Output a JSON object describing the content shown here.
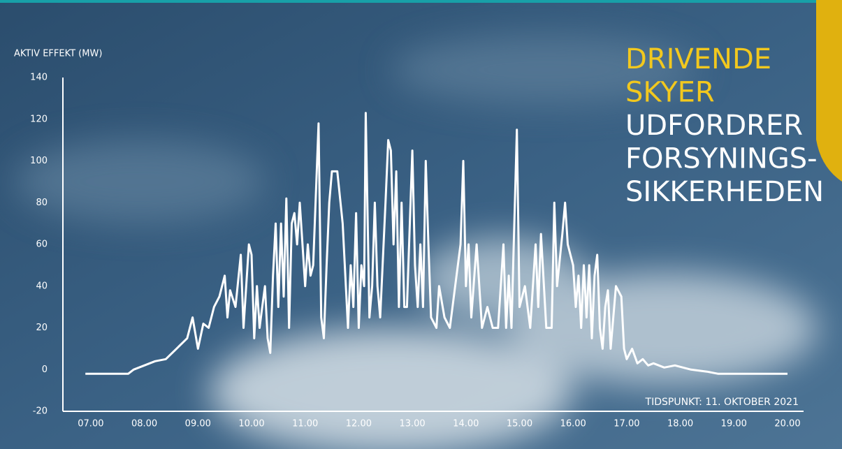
{
  "chart_data": {
    "type": "line",
    "title_lines": [
      {
        "text": "DRIVENDE",
        "color": "#f2c81e"
      },
      {
        "text": "SKYER",
        "color": "#f2c81e"
      },
      {
        "text": "UDFORDRER",
        "color": "#ffffff"
      },
      {
        "text": "FORSYNINGS-",
        "color": "#ffffff"
      },
      {
        "text": "SIKKERHEDEN",
        "color": "#ffffff"
      }
    ],
    "y_label": "AKTIV EFFEKT (MW)",
    "annotation": "TIDSPUNKT: 11. OKTOBER 2021",
    "color": "#ffffff",
    "x": [
      6.9,
      7.7,
      7.8,
      8.0,
      8.2,
      8.4,
      8.6,
      8.8,
      8.9,
      9.0,
      9.1,
      9.2,
      9.3,
      9.4,
      9.5,
      9.55,
      9.6,
      9.7,
      9.8,
      9.85,
      9.95,
      10.0,
      10.05,
      10.1,
      10.15,
      10.2,
      10.25,
      10.3,
      10.35,
      10.4,
      10.45,
      10.5,
      10.55,
      10.6,
      10.65,
      10.7,
      10.75,
      10.8,
      10.85,
      10.9,
      10.95,
      11.0,
      11.05,
      11.1,
      11.15,
      11.25,
      11.3,
      11.35,
      11.4,
      11.45,
      11.5,
      11.6,
      11.7,
      11.8,
      11.85,
      11.9,
      11.95,
      12.0,
      12.05,
      12.1,
      12.13,
      12.2,
      12.25,
      12.3,
      12.35,
      12.4,
      12.5,
      12.55,
      12.6,
      12.65,
      12.7,
      12.75,
      12.8,
      12.85,
      12.9,
      13.0,
      13.05,
      13.1,
      13.15,
      13.2,
      13.25,
      13.3,
      13.35,
      13.45,
      13.5,
      13.6,
      13.7,
      13.8,
      13.9,
      13.95,
      14.0,
      14.05,
      14.1,
      14.2,
      14.3,
      14.4,
      14.5,
      14.6,
      14.7,
      14.75,
      14.8,
      14.85,
      14.95,
      15.0,
      15.1,
      15.2,
      15.3,
      15.35,
      15.4,
      15.5,
      15.6,
      15.65,
      15.7,
      15.8,
      15.85,
      15.9,
      16.0,
      16.05,
      16.1,
      16.15,
      16.2,
      16.25,
      16.3,
      16.35,
      16.4,
      16.45,
      16.5,
      16.55,
      16.6,
      16.65,
      16.7,
      16.8,
      16.9,
      16.95,
      17.0,
      17.1,
      17.2,
      17.3,
      17.4,
      17.5,
      17.7,
      17.9,
      18.2,
      18.5,
      18.7,
      19.0,
      19.5,
      20.0
    ],
    "values": [
      -2,
      -2,
      0,
      2,
      4,
      5,
      10,
      15,
      25,
      10,
      22,
      20,
      30,
      35,
      45,
      25,
      38,
      30,
      55,
      20,
      60,
      55,
      15,
      40,
      20,
      30,
      40,
      15,
      8,
      45,
      70,
      30,
      70,
      35,
      82,
      20,
      70,
      75,
      60,
      80,
      60,
      40,
      60,
      45,
      50,
      118,
      25,
      15,
      50,
      80,
      95,
      95,
      70,
      20,
      50,
      30,
      75,
      20,
      50,
      40,
      123,
      25,
      40,
      80,
      40,
      25,
      80,
      110,
      105,
      60,
      95,
      30,
      80,
      30,
      30,
      105,
      50,
      30,
      60,
      30,
      100,
      60,
      25,
      20,
      40,
      25,
      20,
      40,
      60,
      100,
      40,
      60,
      25,
      60,
      20,
      30,
      20,
      20,
      60,
      20,
      45,
      20,
      115,
      30,
      40,
      20,
      60,
      30,
      65,
      20,
      20,
      80,
      40,
      65,
      80,
      60,
      50,
      30,
      45,
      20,
      50,
      25,
      50,
      15,
      45,
      55,
      20,
      10,
      30,
      38,
      10,
      40,
      35,
      10,
      5,
      10,
      3,
      5,
      2,
      3,
      1,
      2,
      0,
      -1,
      -2,
      -2,
      -2,
      -2
    ],
    "xlim": [
      6.48,
      20.3
    ],
    "ylim": [
      -20,
      140
    ],
    "yticks": [
      -20,
      0,
      20,
      40,
      60,
      80,
      100,
      120,
      140
    ],
    "xticks": [
      {
        "value": 7,
        "label": "07.00"
      },
      {
        "value": 8,
        "label": "08.00"
      },
      {
        "value": 9,
        "label": "09.00"
      },
      {
        "value": 10,
        "label": "10.00"
      },
      {
        "value": 11,
        "label": "11.00"
      },
      {
        "value": 12,
        "label": "12.00"
      },
      {
        "value": 13,
        "label": "13.00"
      },
      {
        "value": 14,
        "label": "14.00"
      },
      {
        "value": 15,
        "label": "15.00"
      },
      {
        "value": 16,
        "label": "16.00"
      },
      {
        "value": 17,
        "label": "17.00"
      },
      {
        "value": 18,
        "label": "18.00"
      },
      {
        "value": 19,
        "label": "19.00"
      },
      {
        "value": 20,
        "label": "20.00"
      }
    ]
  }
}
